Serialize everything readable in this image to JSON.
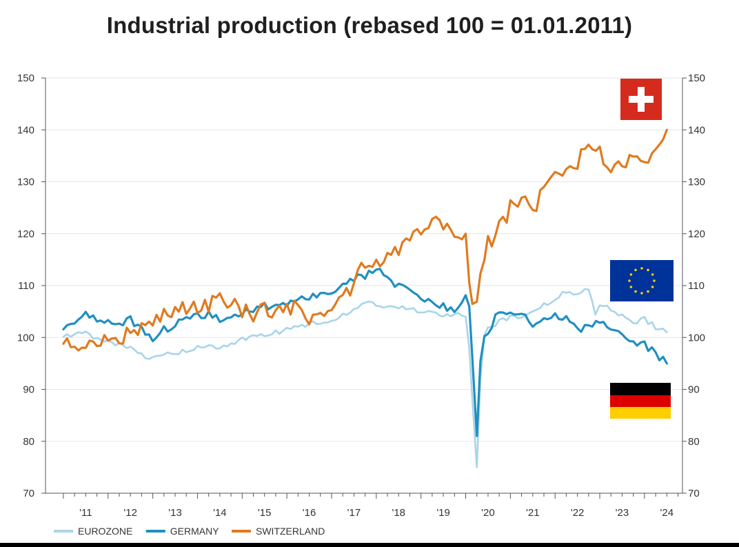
{
  "chart_data": {
    "type": "line",
    "title": "Industrial production (rebased 100 = 01.01.2011)",
    "xlabel": "",
    "ylabel": "",
    "ylim": [
      70,
      150
    ],
    "y_ticks": [
      "150",
      "140",
      "130",
      "120",
      "110",
      "100",
      "90",
      "80",
      "70"
    ],
    "x_tick_labels": [
      "'11",
      "'12",
      "'13",
      "'14",
      "'15",
      "'16",
      "'17",
      "'18",
      "'19",
      "'20",
      "'21",
      "'22",
      "'23",
      "'24"
    ],
    "grid": true,
    "legend_position": "bottom-left",
    "colors": {
      "eurozone": "#a8d4ea",
      "germany": "#1f8fc0",
      "switzerland": "#e07a1f"
    },
    "series": [
      {
        "name": "EUROZONE",
        "x": [
          2011.0,
          2011.25,
          2011.5,
          2011.75,
          2012.0,
          2012.25,
          2012.5,
          2012.75,
          2013.0,
          2013.25,
          2013.5,
          2013.75,
          2014.0,
          2014.25,
          2014.5,
          2014.75,
          2015.0,
          2015.25,
          2015.5,
          2015.75,
          2016.0,
          2016.25,
          2016.5,
          2016.75,
          2017.0,
          2017.25,
          2017.5,
          2017.75,
          2018.0,
          2018.25,
          2018.5,
          2018.75,
          2019.0,
          2019.25,
          2019.5,
          2019.75,
          2020.0,
          2020.08,
          2020.15,
          2020.25,
          2020.33,
          2020.42,
          2020.5,
          2020.75,
          2021.0,
          2021.25,
          2021.5,
          2021.75,
          2022.0,
          2022.25,
          2022.5,
          2022.75,
          2022.9,
          2023.0,
          2023.25,
          2023.5,
          2023.75,
          2024.0,
          2024.25,
          2024.5
        ],
        "values": [
          100.0,
          100.5,
          101.0,
          99.5,
          99.0,
          98.5,
          98.0,
          96.5,
          96.0,
          96.5,
          97.0,
          97.5,
          98.0,
          98.5,
          98.0,
          98.5,
          99.5,
          100.0,
          100.5,
          101.0,
          101.5,
          102.0,
          102.5,
          103.0,
          103.5,
          104.5,
          105.5,
          107.0,
          106.0,
          105.5,
          106.0,
          105.5,
          105.0,
          105.0,
          104.5,
          104.5,
          104.0,
          98.0,
          88.0,
          75.0,
          92.0,
          100.0,
          102.0,
          103.0,
          104.0,
          103.5,
          105.0,
          106.5,
          107.0,
          109.0,
          108.0,
          109.5,
          104.0,
          106.5,
          105.5,
          104.0,
          103.0,
          103.5,
          102.0,
          101.0
        ]
      },
      {
        "name": "GERMANY",
        "x": [
          2011.0,
          2011.25,
          2011.5,
          2011.75,
          2012.0,
          2012.25,
          2012.5,
          2012.75,
          2013.0,
          2013.25,
          2013.5,
          2013.75,
          2014.0,
          2014.25,
          2014.5,
          2014.75,
          2015.0,
          2015.25,
          2015.5,
          2015.75,
          2016.0,
          2016.25,
          2016.5,
          2016.75,
          2017.0,
          2017.25,
          2017.5,
          2017.75,
          2018.0,
          2018.25,
          2018.5,
          2018.75,
          2019.0,
          2019.25,
          2019.5,
          2019.75,
          2020.0,
          2020.08,
          2020.15,
          2020.25,
          2020.33,
          2020.42,
          2020.5,
          2020.75,
          2021.0,
          2021.25,
          2021.5,
          2021.75,
          2022.0,
          2022.25,
          2022.5,
          2022.75,
          2023.0,
          2023.25,
          2023.5,
          2023.75,
          2024.0,
          2024.25,
          2024.5
        ],
        "values": [
          101.0,
          103.0,
          104.5,
          103.0,
          103.0,
          102.5,
          103.5,
          101.5,
          100.0,
          101.5,
          102.5,
          104.0,
          104.0,
          104.5,
          103.5,
          104.5,
          105.0,
          105.5,
          106.0,
          106.5,
          106.5,
          107.0,
          107.5,
          108.0,
          108.5,
          110.0,
          111.5,
          112.0,
          113.0,
          111.5,
          110.0,
          108.5,
          108.0,
          107.0,
          106.0,
          105.0,
          107.5,
          106.0,
          96.0,
          81.0,
          96.0,
          99.5,
          100.0,
          105.5,
          104.5,
          105.0,
          102.0,
          104.0,
          104.5,
          104.0,
          101.5,
          102.5,
          103.0,
          102.0,
          101.0,
          99.0,
          98.5,
          97.0,
          95.0
        ]
      },
      {
        "name": "SWITZERLAND",
        "x": [
          2011.0,
          2011.25,
          2011.5,
          2011.75,
          2012.0,
          2012.25,
          2012.5,
          2012.75,
          2013.0,
          2013.25,
          2013.5,
          2013.75,
          2014.0,
          2014.25,
          2014.5,
          2014.75,
          2015.0,
          2015.25,
          2015.5,
          2015.75,
          2016.0,
          2016.25,
          2016.5,
          2016.75,
          2017.0,
          2017.25,
          2017.5,
          2017.75,
          2018.0,
          2018.25,
          2018.5,
          2018.75,
          2019.0,
          2019.25,
          2019.5,
          2019.75,
          2020.0,
          2020.08,
          2020.15,
          2020.25,
          2020.33,
          2020.42,
          2020.5,
          2020.75,
          2021.0,
          2021.25,
          2021.5,
          2021.75,
          2022.0,
          2022.25,
          2022.5,
          2022.75,
          2023.0,
          2023.25,
          2023.5,
          2023.75,
          2024.0,
          2024.25,
          2024.5
        ],
        "values": [
          100.0,
          99.0,
          98.5,
          99.0,
          99.5,
          100.0,
          100.5,
          102.0,
          103.0,
          104.0,
          105.0,
          105.5,
          106.0,
          106.5,
          107.0,
          107.5,
          105.0,
          104.5,
          105.5,
          104.5,
          105.0,
          106.5,
          104.0,
          103.5,
          105.0,
          107.0,
          110.0,
          114.5,
          114.0,
          115.0,
          117.0,
          119.0,
          120.5,
          121.5,
          122.0,
          121.0,
          120.0,
          112.0,
          108.0,
          107.0,
          111.0,
          115.0,
          118.0,
          121.0,
          125.0,
          127.0,
          124.0,
          129.0,
          132.0,
          131.0,
          134.0,
          136.0,
          137.0,
          131.0,
          134.0,
          135.0,
          134.5,
          135.0,
          140.0
        ]
      }
    ]
  },
  "flags": [
    {
      "name": "flag-switzerland-icon",
      "country": "Switzerland"
    },
    {
      "name": "flag-eu-icon",
      "country": "European Union"
    },
    {
      "name": "flag-germany-icon",
      "country": "Germany"
    }
  ]
}
